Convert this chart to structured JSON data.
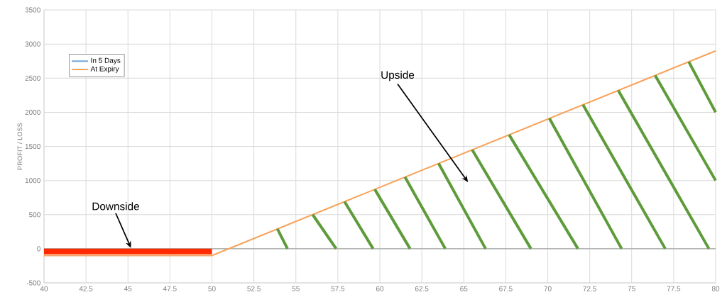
{
  "chart_data": {
    "type": "line",
    "ylabel": "PROFIT / LOSS",
    "xlim": [
      40,
      80
    ],
    "xticks": [
      40,
      42.5,
      45,
      47.5,
      50,
      52.5,
      55,
      57.5,
      60,
      62.5,
      65,
      67.5,
      70,
      72.5,
      75,
      77.5,
      80
    ],
    "ylim": [
      -500,
      3500
    ],
    "yticks": [
      -500,
      0,
      500,
      1000,
      1500,
      2000,
      2500,
      3000,
      3500
    ],
    "grid": true,
    "legend": "top left",
    "marker": "none",
    "line_style": "solid",
    "ref_lines": [
      {
        "axis": "y",
        "value": 0,
        "color": "#a6a6a6"
      }
    ],
    "annotations": [
      {
        "text": "Downside",
        "x": 45.2,
        "y": 0
      },
      "Upside"
    ],
    "series": [
      {
        "name": "In 5 Days",
        "color": "#6fa8dc"
      },
      {
        "name": "At Expiry",
        "color": "#f7a35c",
        "x": [
          40,
          50,
          80
        ],
        "values": [
          -100,
          -100,
          2900
        ]
      },
      {
        "color": "#ff2a00",
        "x": [
          40,
          50
        ],
        "values": [
          -40,
          -40
        ]
      },
      {
        "color": "#5e9b3a",
        "x": [
          53.9,
          54.5
        ],
        "values": [
          290,
          0
        ]
      },
      {
        "color": "#5e9b3a",
        "x": [
          56.0,
          57.4
        ],
        "values": [
          500,
          0
        ]
      },
      {
        "color": "#5e9b3a",
        "x": [
          57.9,
          59.6
        ],
        "values": [
          690,
          0
        ]
      },
      {
        "color": "#5e9b3a",
        "x": [
          59.7,
          61.8
        ],
        "values": [
          870,
          0
        ]
      },
      {
        "color": "#5e9b3a",
        "x": [
          61.5,
          63.9
        ],
        "values": [
          1050,
          0
        ]
      },
      {
        "color": "#5e9b3a",
        "x": [
          63.5,
          66.3
        ],
        "values": [
          1250,
          0
        ]
      },
      {
        "color": "#5e9b3a",
        "x": [
          65.5,
          69.0
        ],
        "values": [
          1450,
          0
        ]
      },
      {
        "color": "#5e9b3a",
        "x": [
          67.7,
          71.8
        ],
        "values": [
          1670,
          0
        ]
      },
      {
        "color": "#5e9b3a",
        "x": [
          70.1,
          74.4
        ],
        "values": [
          1910,
          0
        ]
      },
      {
        "color": "#5e9b3a",
        "x": [
          72.1,
          77.0
        ],
        "values": [
          2110,
          0
        ]
      },
      {
        "color": "#5e9b3a",
        "x": [
          74.2,
          79.6
        ],
        "values": [
          2320,
          0
        ]
      },
      {
        "color": "#5e9b3a",
        "x": [
          76.4,
          80
        ],
        "values": [
          2540,
          1000
        ]
      },
      {
        "color": "#5e9b3a",
        "x": [
          78.4,
          80
        ],
        "values": [
          2740,
          2000
        ]
      }
    ]
  }
}
